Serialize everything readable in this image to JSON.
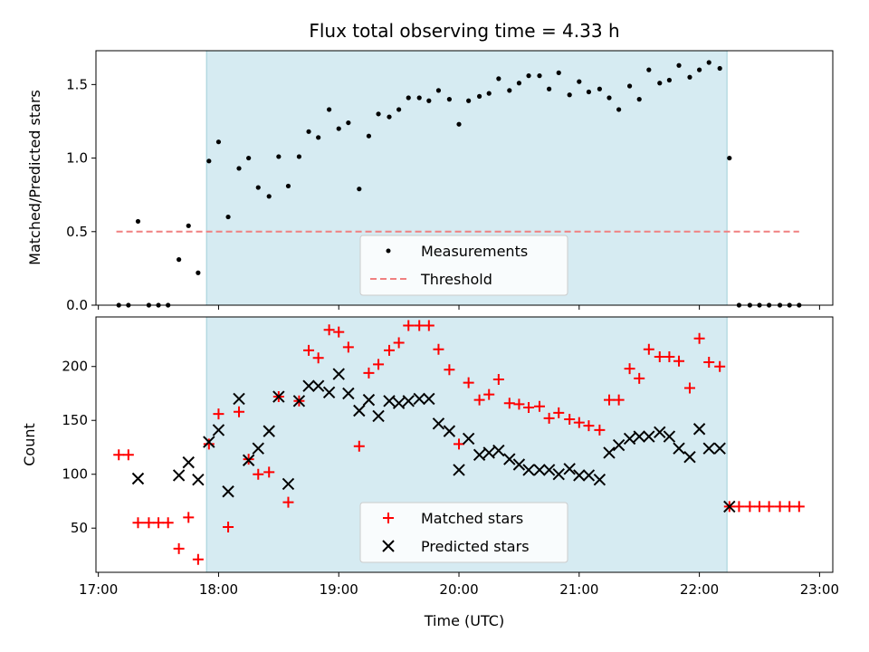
{
  "chart_data": [
    {
      "type": "scatter",
      "title": "Flux total observing time = 4.33 h",
      "xlabel": "",
      "ylabel": "Matched/Predicted stars",
      "xlim": [
        16.98,
        23.11
      ],
      "ylim": [
        0.0,
        1.73
      ],
      "yticks": [
        0.0,
        0.5,
        1.0,
        1.5
      ],
      "ytick_labels": [
        "0.0",
        "0.5",
        "1.0",
        "1.5"
      ],
      "shaded_span": [
        17.9,
        22.23
      ],
      "legend_location": "lower-center",
      "series": [
        {
          "name": "Measurements",
          "marker": "dot",
          "color": "#000000",
          "x": [
            17.17,
            17.25,
            17.33,
            17.42,
            17.5,
            17.58,
            17.67,
            17.75,
            17.83,
            17.92,
            18.0,
            18.08,
            18.17,
            18.25,
            18.33,
            18.42,
            18.5,
            18.58,
            18.67,
            18.75,
            18.83,
            18.92,
            19.0,
            19.08,
            19.17,
            19.25,
            19.33,
            19.42,
            19.5,
            19.58,
            19.67,
            19.75,
            19.83,
            19.92,
            20.0,
            20.08,
            20.17,
            20.25,
            20.33,
            20.42,
            20.5,
            20.58,
            20.67,
            20.75,
            20.83,
            20.92,
            21.0,
            21.08,
            21.17,
            21.25,
            21.33,
            21.42,
            21.5,
            21.58,
            21.67,
            21.75,
            21.83,
            21.92,
            22.0,
            22.08,
            22.17,
            22.25,
            22.33,
            22.42,
            22.5,
            22.58,
            22.67,
            22.75,
            22.83
          ],
          "y": [
            0.0,
            0.0,
            0.57,
            0.0,
            0.0,
            0.0,
            0.31,
            0.54,
            0.22,
            0.98,
            1.11,
            0.6,
            0.93,
            1.0,
            0.8,
            0.74,
            1.01,
            0.81,
            1.01,
            1.18,
            1.14,
            1.33,
            1.2,
            1.24,
            0.79,
            1.15,
            1.3,
            1.28,
            1.33,
            1.41,
            1.41,
            1.39,
            1.46,
            1.4,
            1.23,
            1.39,
            1.42,
            1.44,
            1.54,
            1.46,
            1.51,
            1.56,
            1.56,
            1.47,
            1.58,
            1.43,
            1.52,
            1.45,
            1.47,
            1.41,
            1.33,
            1.49,
            1.4,
            1.6,
            1.51,
            1.53,
            1.63,
            1.55,
            1.6,
            1.65,
            1.61,
            1.0,
            0.0,
            0.0,
            0.0,
            0.0,
            0.0,
            0.0,
            0.0
          ]
        },
        {
          "name": "Threshold",
          "marker": "dashed-line",
          "color": "#f08080",
          "x": [
            17.15,
            22.83
          ],
          "y": [
            0.5,
            0.5
          ]
        }
      ]
    },
    {
      "type": "scatter",
      "title": "",
      "xlabel": "Time (UTC)",
      "ylabel": "Count",
      "xlim": [
        16.98,
        23.11
      ],
      "ylim": [
        9,
        246
      ],
      "yticks": [
        50,
        100,
        150,
        200
      ],
      "ytick_labels": [
        "50",
        "100",
        "150",
        "200"
      ],
      "xticks": [
        17,
        18,
        19,
        20,
        21,
        22,
        23
      ],
      "xtick_labels": [
        "17:00",
        "18:00",
        "19:00",
        "20:00",
        "21:00",
        "22:00",
        "23:00"
      ],
      "shaded_span": [
        17.9,
        22.23
      ],
      "legend_location": "lower-center",
      "series": [
        {
          "name": "Matched stars",
          "marker": "plus",
          "color": "#ff0000",
          "x": [
            17.17,
            17.25,
            17.33,
            17.42,
            17.5,
            17.58,
            17.67,
            17.75,
            17.83,
            17.92,
            18.0,
            18.08,
            18.17,
            18.25,
            18.33,
            18.42,
            18.5,
            18.58,
            18.67,
            18.75,
            18.83,
            18.92,
            19.0,
            19.08,
            19.17,
            19.25,
            19.33,
            19.42,
            19.5,
            19.58,
            19.67,
            19.75,
            19.83,
            19.92,
            20.0,
            20.08,
            20.17,
            20.25,
            20.33,
            20.42,
            20.5,
            20.58,
            20.67,
            20.75,
            20.83,
            20.92,
            21.0,
            21.08,
            21.17,
            21.25,
            21.33,
            21.42,
            21.5,
            21.58,
            21.67,
            21.75,
            21.83,
            21.92,
            22.0,
            22.08,
            22.17,
            22.25,
            22.33,
            22.42,
            22.5,
            22.58,
            22.67,
            22.75,
            22.83
          ],
          "y": [
            118,
            118,
            55,
            55,
            55,
            55,
            31,
            60,
            21,
            128,
            156,
            51,
            158,
            114,
            100,
            102,
            172,
            74,
            168,
            215,
            208,
            234,
            232,
            218,
            126,
            194,
            202,
            215,
            222,
            238,
            238,
            238,
            216,
            197,
            128,
            185,
            169,
            174,
            188,
            166,
            165,
            162,
            163,
            152,
            157,
            151,
            148,
            145,
            141,
            169,
            169,
            198,
            189,
            216,
            209,
            209,
            205,
            180,
            226,
            204,
            200,
            70,
            70,
            70,
            70,
            70,
            70,
            70,
            70
          ]
        },
        {
          "name": "Predicted stars",
          "marker": "x",
          "color": "#000000",
          "x": [
            17.33,
            17.67,
            17.75,
            17.83,
            17.92,
            18.0,
            18.08,
            18.17,
            18.25,
            18.33,
            18.42,
            18.5,
            18.58,
            18.67,
            18.75,
            18.83,
            18.92,
            19.0,
            19.08,
            19.17,
            19.25,
            19.33,
            19.42,
            19.5,
            19.58,
            19.67,
            19.75,
            19.83,
            19.92,
            20.0,
            20.08,
            20.17,
            20.25,
            20.33,
            20.42,
            20.5,
            20.58,
            20.67,
            20.75,
            20.83,
            20.92,
            21.0,
            21.08,
            21.17,
            21.25,
            21.33,
            21.42,
            21.5,
            21.58,
            21.67,
            21.75,
            21.83,
            21.92,
            22.0,
            22.08,
            22.17,
            22.25
          ],
          "y": [
            96,
            99,
            111,
            95,
            130,
            141,
            84,
            170,
            113,
            124,
            140,
            172,
            91,
            168,
            182,
            182,
            176,
            193,
            175,
            159,
            169,
            154,
            168,
            166,
            168,
            170,
            170,
            147,
            140,
            104,
            133,
            118,
            120,
            122,
            114,
            109,
            104,
            104,
            104,
            100,
            105,
            99,
            99,
            95,
            120,
            127,
            133,
            135,
            135,
            139,
            135,
            124,
            116,
            142,
            124,
            124,
            70
          ]
        }
      ]
    }
  ]
}
